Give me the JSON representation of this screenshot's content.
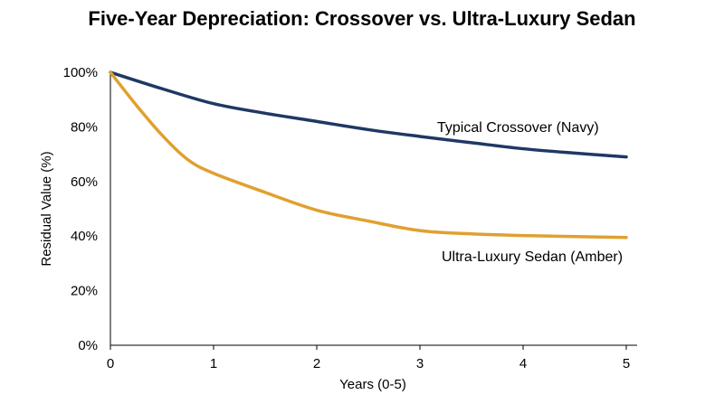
{
  "chart_data": {
    "type": "line",
    "title": "Five-Year Depreciation: Crossover vs. Ultra-Luxury Sedan",
    "xlabel": "Years (0-5)",
    "ylabel": "Residual Value (%)",
    "xlim": [
      0,
      5
    ],
    "ylim": [
      0,
      100
    ],
    "x_ticks": [
      0,
      1,
      2,
      3,
      4,
      5
    ],
    "x_tick_labels": [
      "0",
      "1",
      "2",
      "3",
      "4",
      "5"
    ],
    "y_ticks": [
      0,
      20,
      40,
      60,
      80,
      100
    ],
    "y_tick_labels": [
      "0%",
      "20%",
      "40%",
      "60%",
      "80%",
      "100%"
    ],
    "grid": false,
    "legend": "inline labels",
    "series": [
      {
        "name": "Typical Crossover (Navy)",
        "color": "#1f3864",
        "x": [
          0,
          0.5,
          1,
          1.5,
          2,
          2.5,
          3,
          3.5,
          4,
          4.5,
          5
        ],
        "values": [
          100,
          94,
          88.5,
          85,
          82,
          79,
          76.5,
          74.2,
          72,
          70.4,
          69
        ]
      },
      {
        "name": "Ultra-Luxury Sedan (Amber)",
        "color": "#e0a030",
        "x": [
          0,
          0.25,
          0.5,
          0.75,
          1,
          1.5,
          2,
          2.5,
          3,
          3.5,
          4,
          4.5,
          5
        ],
        "values": [
          100,
          88,
          77,
          68,
          63,
          56,
          49.5,
          45.5,
          42,
          40.8,
          40.2,
          39.8,
          39.5
        ]
      }
    ]
  }
}
